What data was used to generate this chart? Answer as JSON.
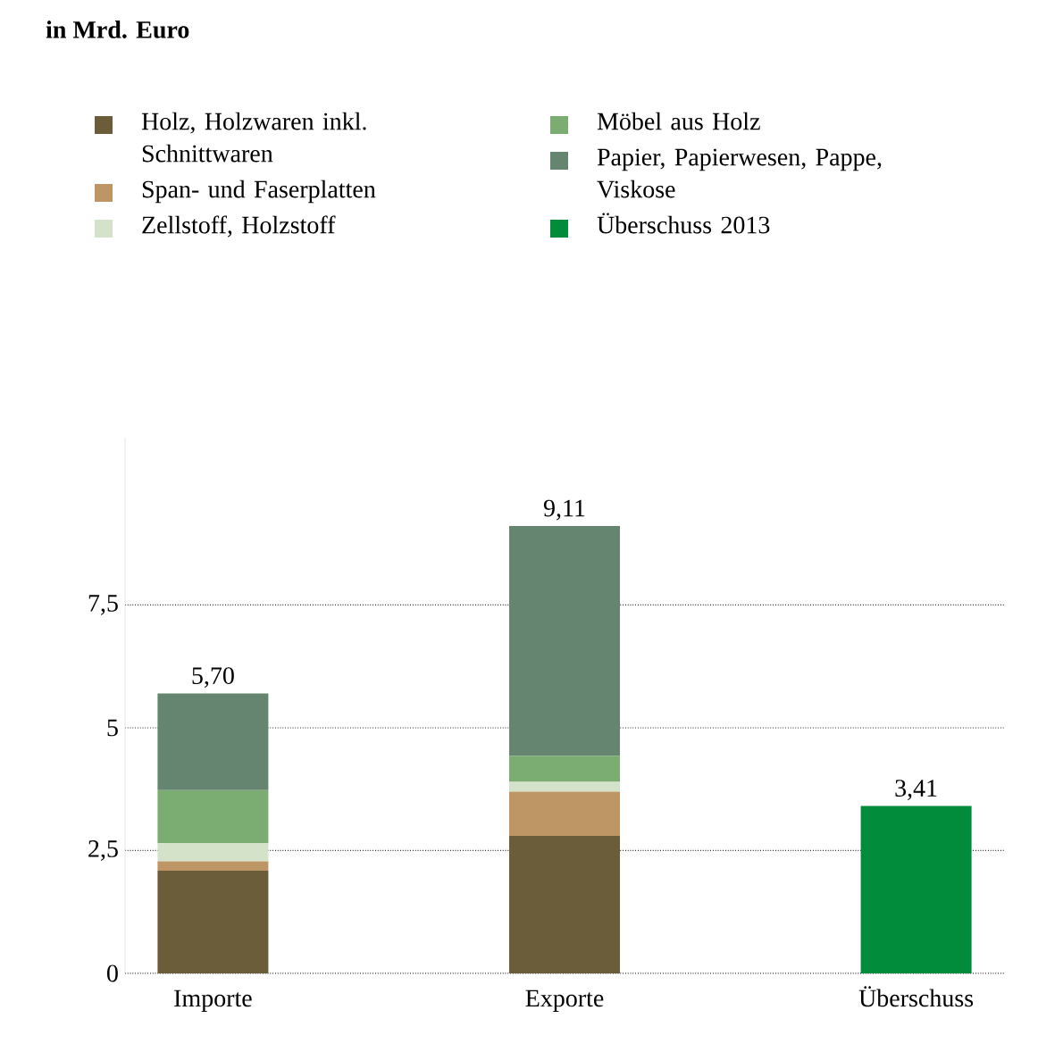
{
  "chart_data": {
    "type": "bar",
    "title": "in Mrd. Euro",
    "stacked": true,
    "categories": [
      "Importe",
      "Exporte",
      "Überschuss"
    ],
    "series": [
      {
        "name": "Holz, Holzwaren inkl. Schnittwaren",
        "color": "#6b5d3a",
        "values": [
          2.09,
          2.8,
          null
        ]
      },
      {
        "name": "Span- und Faserplatten",
        "color": "#be9665",
        "values": [
          0.19,
          0.9,
          null
        ]
      },
      {
        "name": "Zellstoff, Holzstoff",
        "color": "#d3e2c9",
        "values": [
          0.37,
          0.2,
          null
        ]
      },
      {
        "name": "Möbel aus Holz",
        "color": "#7bac72",
        "values": [
          1.08,
          0.53,
          null
        ]
      },
      {
        "name": "Papier, Papierwesen, Pappe, Viskose",
        "color": "#668571",
        "values": [
          1.97,
          4.68,
          null
        ]
      },
      {
        "name": "Überschuss 2013",
        "color": "#008c3a",
        "values": [
          null,
          null,
          3.41
        ]
      }
    ],
    "totals": [
      "5,70",
      "9,11",
      "3,41"
    ],
    "ylim": [
      0,
      10.9
    ],
    "yticks": [
      0,
      {
        "value": 2.5,
        "label": "2,5"
      },
      5,
      {
        "value": 7.5,
        "label": "7,5"
      }
    ],
    "grid": "y",
    "legend": "top"
  }
}
